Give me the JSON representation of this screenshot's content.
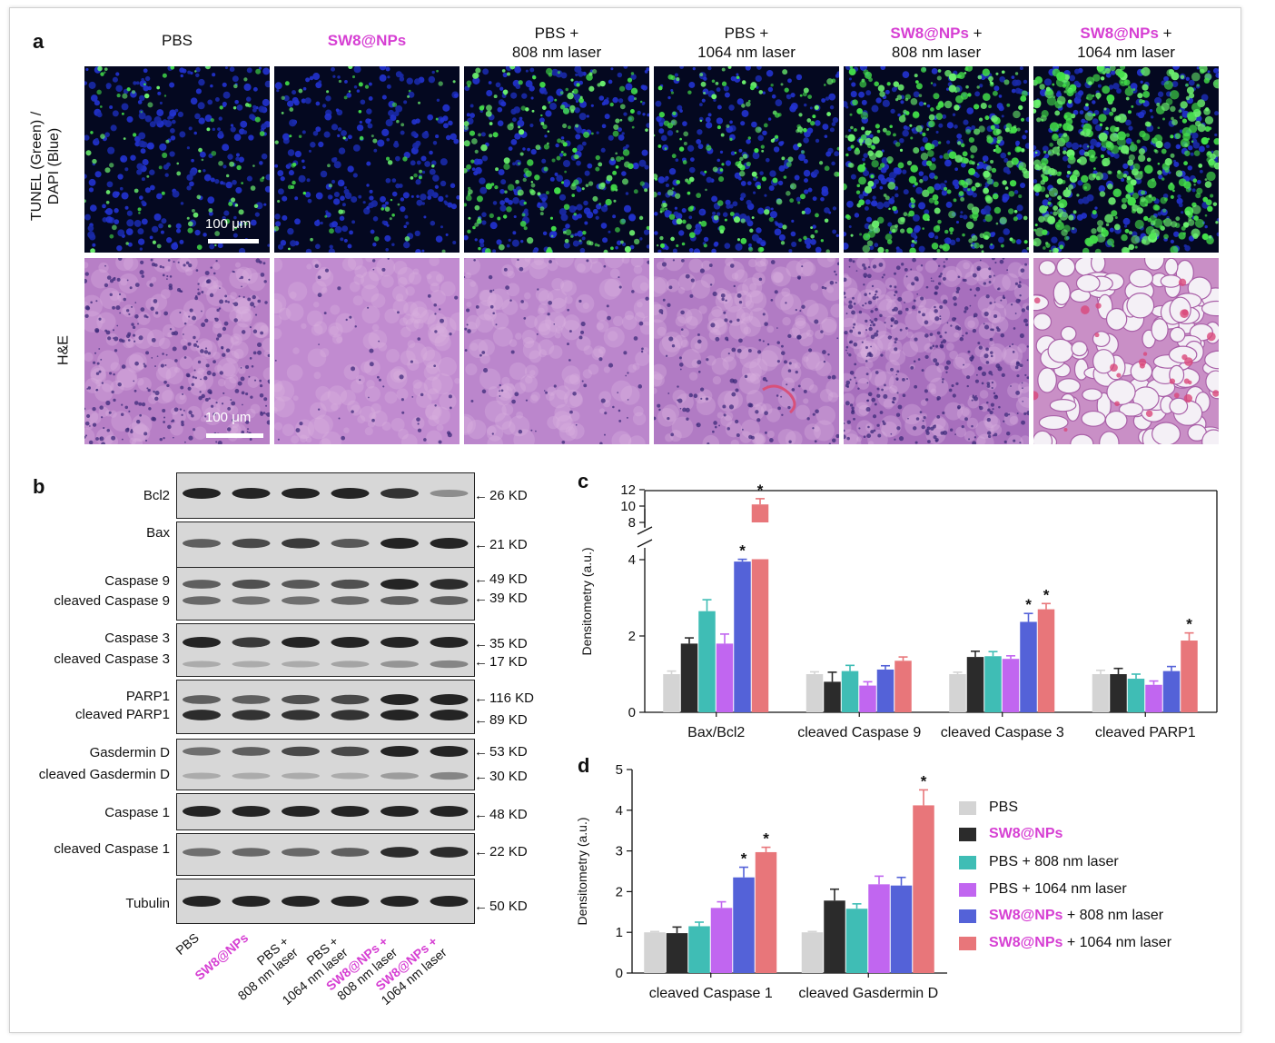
{
  "panel_labels": {
    "a": "a",
    "b": "b",
    "c": "c",
    "d": "d"
  },
  "columns": [
    {
      "title1": "PBS",
      "title1_mag": false,
      "title2": ""
    },
    {
      "title1": "SW8@NPs",
      "title1_mag": true,
      "title2": ""
    },
    {
      "title1": "PBS +",
      "title1_mag": false,
      "title2": "808 nm laser"
    },
    {
      "title1": "PBS +",
      "title1_mag": false,
      "title2": "1064 nm laser"
    },
    {
      "title1": "SW8@NPs",
      "title1_mag": true,
      "title1_suffix": " +",
      "title2": "808 nm laser"
    },
    {
      "title1": "SW8@NPs",
      "title1_mag": true,
      "title1_suffix": " +",
      "title2": "1064 nm laser"
    }
  ],
  "row_labels": {
    "tunel_line1": "TUNEL (Green) /",
    "tunel_line2": "DAPI (Blue)",
    "he": "H&E"
  },
  "scale_bar": "100 μm",
  "tunel_green_density": [
    0.15,
    0.08,
    0.45,
    0.35,
    0.7,
    1.0
  ],
  "blots": [
    {
      "labels": [
        "Bcl2"
      ],
      "kd": [
        "26 KD"
      ]
    },
    {
      "labels": [
        "Bax"
      ],
      "kd": [
        "21 KD"
      ]
    },
    {
      "labels": [
        "Caspase 9",
        "cleaved Caspase 9"
      ],
      "kd": [
        "49 KD",
        "39 KD"
      ]
    },
    {
      "labels": [
        "Caspase 3",
        "cleaved Caspase 3"
      ],
      "kd": [
        "35 KD",
        "17 KD"
      ]
    },
    {
      "labels": [
        "PARP1",
        "cleaved PARP1"
      ],
      "kd": [
        "116 KD",
        "89 KD"
      ]
    },
    {
      "labels": [
        "Gasdermin D",
        "cleaved Gasdermin D"
      ],
      "kd": [
        "53 KD",
        "30 KD"
      ]
    },
    {
      "labels": [
        "Caspase 1"
      ],
      "kd": [
        "48 KD"
      ]
    },
    {
      "labels": [
        "cleaved Caspase 1"
      ],
      "kd": [
        "22 KD"
      ]
    },
    {
      "labels": [
        "Tubulin"
      ],
      "kd": [
        "50 KD"
      ]
    }
  ],
  "lanes": [
    {
      "l1": "PBS",
      "l1_mag": false,
      "l2": ""
    },
    {
      "l1": "SW8@NPs",
      "l1_mag": true,
      "l2": ""
    },
    {
      "l1": "PBS +",
      "l1_mag": false,
      "l2": "808 nm laser"
    },
    {
      "l1": "PBS +",
      "l1_mag": false,
      "l2": "1064 nm laser"
    },
    {
      "l1": "SW8@NPs +",
      "l1_mag": true,
      "l2": "808 nm laser"
    },
    {
      "l1": "SW8@NPs +",
      "l1_mag": true,
      "l2": "1064 nm laser"
    }
  ],
  "legend": [
    {
      "label": "PBS",
      "mag_part": "",
      "color": "#d4d4d4"
    },
    {
      "label": "",
      "mag_part": "SW8@NPs",
      "color": "#2b2b2b"
    },
    {
      "label": "PBS + 808 nm laser",
      "mag_part": "",
      "color": "#3fbdb5"
    },
    {
      "label": "PBS + 1064 nm laser",
      "mag_part": "",
      "color": "#c166f0"
    },
    {
      "label": " + 808 nm laser",
      "mag_part": "SW8@NPs",
      "color": "#5462d8"
    },
    {
      "label": " + 1064 nm laser",
      "mag_part": "SW8@NPs",
      "color": "#e8767a"
    }
  ],
  "chart_data": [
    {
      "type": "bar",
      "panel": "c",
      "ylabel": "Densitometry (a.u.)",
      "broken_axis": true,
      "ylim_lower": [
        0,
        4
      ],
      "ylim_upper": [
        8,
        12
      ],
      "yticks": [
        0,
        2,
        4,
        8,
        10,
        12
      ],
      "categories": [
        "Bax/Bcl2",
        "cleaved Caspase 9",
        "cleaved Caspase 3",
        "cleaved PARP1"
      ],
      "series": [
        {
          "name": "PBS",
          "values": [
            1.0,
            1.0,
            1.0,
            1.0
          ],
          "err": [
            0.08,
            0.06,
            0.05,
            0.1
          ]
        },
        {
          "name": "SW8@NPs",
          "values": [
            1.8,
            0.8,
            1.45,
            1.0
          ],
          "err": [
            0.15,
            0.25,
            0.15,
            0.15
          ]
        },
        {
          "name": "PBS + 808 nm laser",
          "values": [
            2.65,
            1.08,
            1.47,
            0.88
          ],
          "err": [
            0.3,
            0.15,
            0.12,
            0.12
          ]
        },
        {
          "name": "PBS + 1064 nm laser",
          "values": [
            1.8,
            0.7,
            1.4,
            0.72
          ],
          "err": [
            0.25,
            0.1,
            0.08,
            0.1
          ]
        },
        {
          "name": "SW8@NPs + 808 nm laser",
          "values": [
            3.95,
            1.12,
            2.37,
            1.08
          ],
          "err": [
            0.45,
            0.1,
            0.22,
            0.12
          ]
        },
        {
          "name": "SW8@NPs + 1064 nm laser",
          "values": [
            10.2,
            1.35,
            2.7,
            1.88
          ],
          "err": [
            0.7,
            0.1,
            0.15,
            0.2
          ]
        }
      ],
      "significance": "*"
    },
    {
      "type": "bar",
      "panel": "d",
      "ylabel": "Densitometry (a.u.)",
      "ylim": [
        0,
        5
      ],
      "yticks": [
        0,
        1,
        2,
        3,
        4,
        5
      ],
      "categories": [
        "cleaved Caspase 1",
        "cleaved Gasdermin D"
      ],
      "series": [
        {
          "name": "PBS",
          "values": [
            1.0,
            1.0
          ],
          "err": [
            0.02,
            0.02
          ]
        },
        {
          "name": "SW8@NPs",
          "values": [
            0.98,
            1.78
          ],
          "err": [
            0.15,
            0.28
          ]
        },
        {
          "name": "PBS + 808 nm laser",
          "values": [
            1.15,
            1.58
          ],
          "err": [
            0.1,
            0.12
          ]
        },
        {
          "name": "PBS + 1064 nm laser",
          "values": [
            1.6,
            2.18
          ],
          "err": [
            0.15,
            0.2
          ]
        },
        {
          "name": "SW8@NPs + 808 nm laser",
          "values": [
            2.35,
            2.15
          ],
          "err": [
            0.25,
            0.2
          ]
        },
        {
          "name": "SW8@NPs + 1064 nm laser",
          "values": [
            2.97,
            4.12
          ],
          "err": [
            0.12,
            0.38
          ]
        }
      ],
      "significance": "*"
    }
  ]
}
